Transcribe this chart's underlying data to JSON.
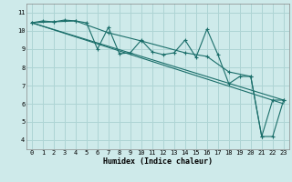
{
  "xlabel": "Humidex (Indice chaleur)",
  "bg_color": "#ceeaea",
  "line_color": "#1a6e6a",
  "grid_color": "#aed4d4",
  "xlim": [
    -0.5,
    23.5
  ],
  "ylim": [
    3.5,
    11.5
  ],
  "yticks": [
    4,
    5,
    6,
    7,
    8,
    9,
    10,
    11
  ],
  "xticks": [
    0,
    1,
    2,
    3,
    4,
    5,
    6,
    7,
    8,
    9,
    10,
    11,
    12,
    13,
    14,
    15,
    16,
    17,
    18,
    19,
    20,
    21,
    22,
    23
  ],
  "series1_x": [
    0,
    1,
    2,
    3,
    4,
    5,
    6,
    7,
    8,
    9,
    10,
    11,
    12,
    13,
    14,
    15,
    16,
    17,
    18,
    19,
    20,
    21,
    22,
    23
  ],
  "series1_y": [
    10.45,
    10.55,
    10.5,
    10.6,
    10.55,
    10.45,
    9.0,
    10.2,
    8.75,
    8.8,
    9.5,
    8.85,
    8.7,
    8.8,
    9.5,
    8.55,
    10.1,
    8.7,
    7.1,
    7.5,
    7.5,
    4.2,
    4.2,
    6.2
  ],
  "series2_x": [
    0,
    2,
    4,
    7,
    10,
    14,
    16,
    18,
    20,
    21,
    22,
    23
  ],
  "series2_y": [
    10.45,
    10.5,
    10.55,
    9.9,
    9.45,
    8.8,
    8.6,
    7.75,
    7.5,
    4.2,
    6.2,
    6.2
  ],
  "series3_x": [
    0,
    23
  ],
  "series3_y": [
    10.45,
    6.2
  ],
  "series4_x": [
    0,
    23
  ],
  "series4_y": [
    10.45,
    6.0
  ]
}
